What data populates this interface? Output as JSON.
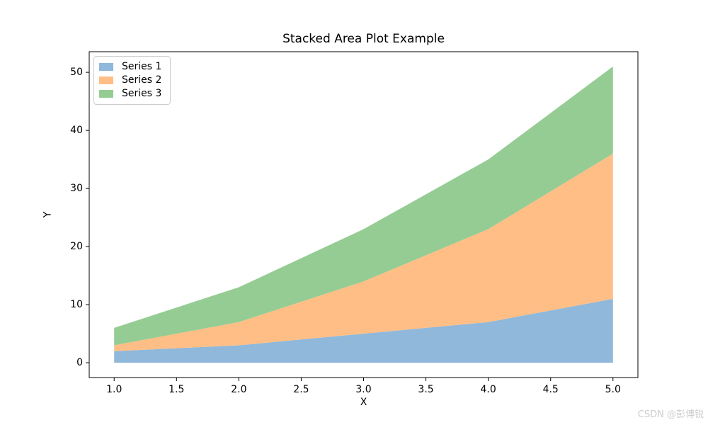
{
  "title": "Stacked Area Plot Example",
  "watermark": "CSDN @彭博锐",
  "chart_data": {
    "type": "area",
    "stacked": true,
    "title": "Stacked Area Plot Example",
    "xlabel": "X",
    "ylabel": "Y",
    "x": [
      1,
      2,
      3,
      4,
      5
    ],
    "series": [
      {
        "name": "Series 1",
        "values": [
          2,
          3,
          5,
          7,
          11
        ],
        "color": "#8fb8da"
      },
      {
        "name": "Series 2",
        "values": [
          1,
          4,
          9,
          16,
          25
        ],
        "color": "#ffbe86"
      },
      {
        "name": "Series 3",
        "values": [
          3,
          6,
          9,
          12,
          15
        ],
        "color": "#95cc93"
      }
    ],
    "stack_totals": [
      6,
      13,
      23,
      35,
      51
    ],
    "xticks": [
      1.0,
      1.5,
      2.0,
      2.5,
      3.0,
      3.5,
      4.0,
      4.5,
      5.0
    ],
    "xtick_labels": [
      "1.0",
      "1.5",
      "2.0",
      "2.5",
      "3.0",
      "3.5",
      "4.0",
      "4.5",
      "5.0"
    ],
    "yticks": [
      0,
      10,
      20,
      30,
      40,
      50
    ],
    "ytick_labels": [
      "0",
      "10",
      "20",
      "30",
      "40",
      "50"
    ],
    "xlim": [
      0.8,
      5.2
    ],
    "ylim": [
      -2.55,
      53.55
    ],
    "grid": false,
    "legend_position": "upper left",
    "frame_color": "#000000",
    "background_color": "#ffffff"
  }
}
